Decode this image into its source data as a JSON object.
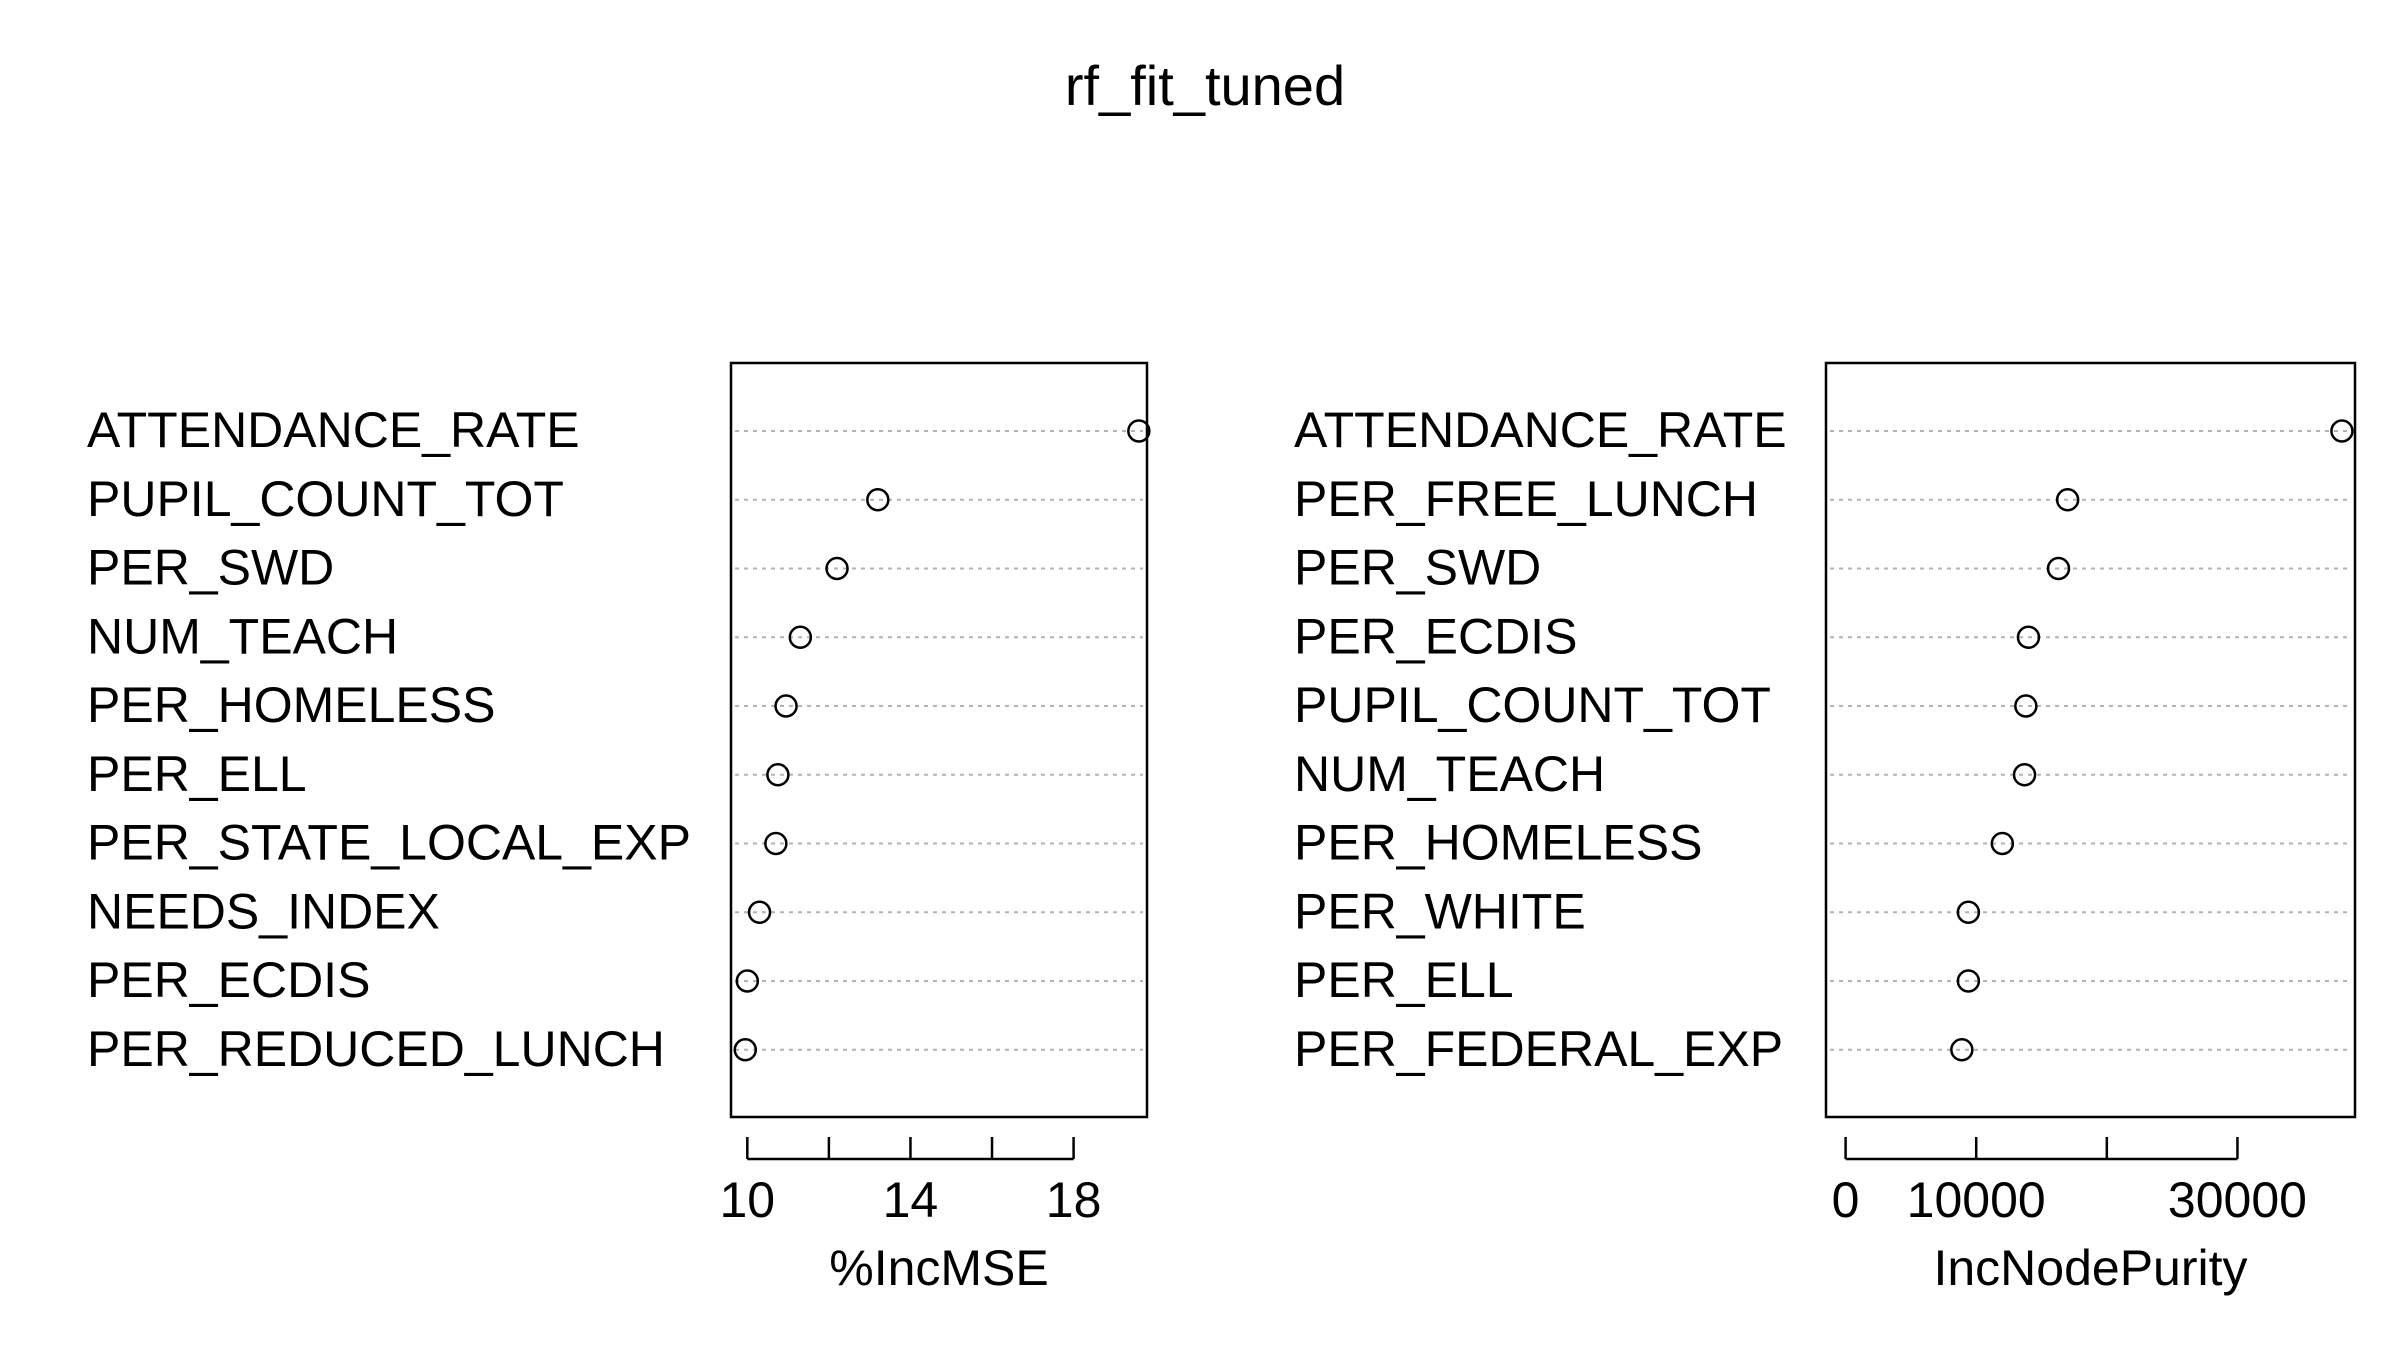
{
  "title": "rf_fit_tuned",
  "chart_data": [
    {
      "type": "scatter",
      "subtype": "dotchart",
      "title": "",
      "xlabel": "%IncMSE",
      "ylabel": "",
      "xlim": [
        9.6,
        19.8
      ],
      "xticks": [
        10,
        12,
        14,
        16,
        18
      ],
      "xtick_labels": [
        "10",
        "",
        "14",
        "",
        "18"
      ],
      "grid": "dotted horizontal guides",
      "categories": [
        "ATTENDANCE_RATE",
        "PUPIL_COUNT_TOT",
        "PER_SWD",
        "NUM_TEACH",
        "PER_HOMELESS",
        "PER_ELL",
        "PER_STATE_LOCAL_EXP",
        "NEEDS_INDEX",
        "PER_ECDIS",
        "PER_REDUCED_LUNCH"
      ],
      "values": [
        19.6,
        13.2,
        12.2,
        11.3,
        10.95,
        10.75,
        10.7,
        10.3,
        10.0,
        9.95
      ]
    },
    {
      "type": "scatter",
      "subtype": "dotchart",
      "title": "",
      "xlabel": "IncNodePurity",
      "ylabel": "",
      "xlim": [
        -1500,
        39000
      ],
      "xticks": [
        0,
        10000,
        20000,
        30000
      ],
      "xtick_labels": [
        "0",
        "10000",
        "",
        "30000"
      ],
      "grid": "dotted horizontal guides",
      "categories": [
        "ATTENDANCE_RATE",
        "PER_FREE_LUNCH",
        "PER_SWD",
        "PER_ECDIS",
        "PUPIL_COUNT_TOT",
        "NUM_TEACH",
        "PER_HOMELESS",
        "PER_WHITE",
        "PER_ELL",
        "PER_FEDERAL_EXP"
      ],
      "values": [
        38000,
        17000,
        16300,
        14000,
        13800,
        13700,
        12000,
        9400,
        9400,
        8900
      ]
    }
  ]
}
